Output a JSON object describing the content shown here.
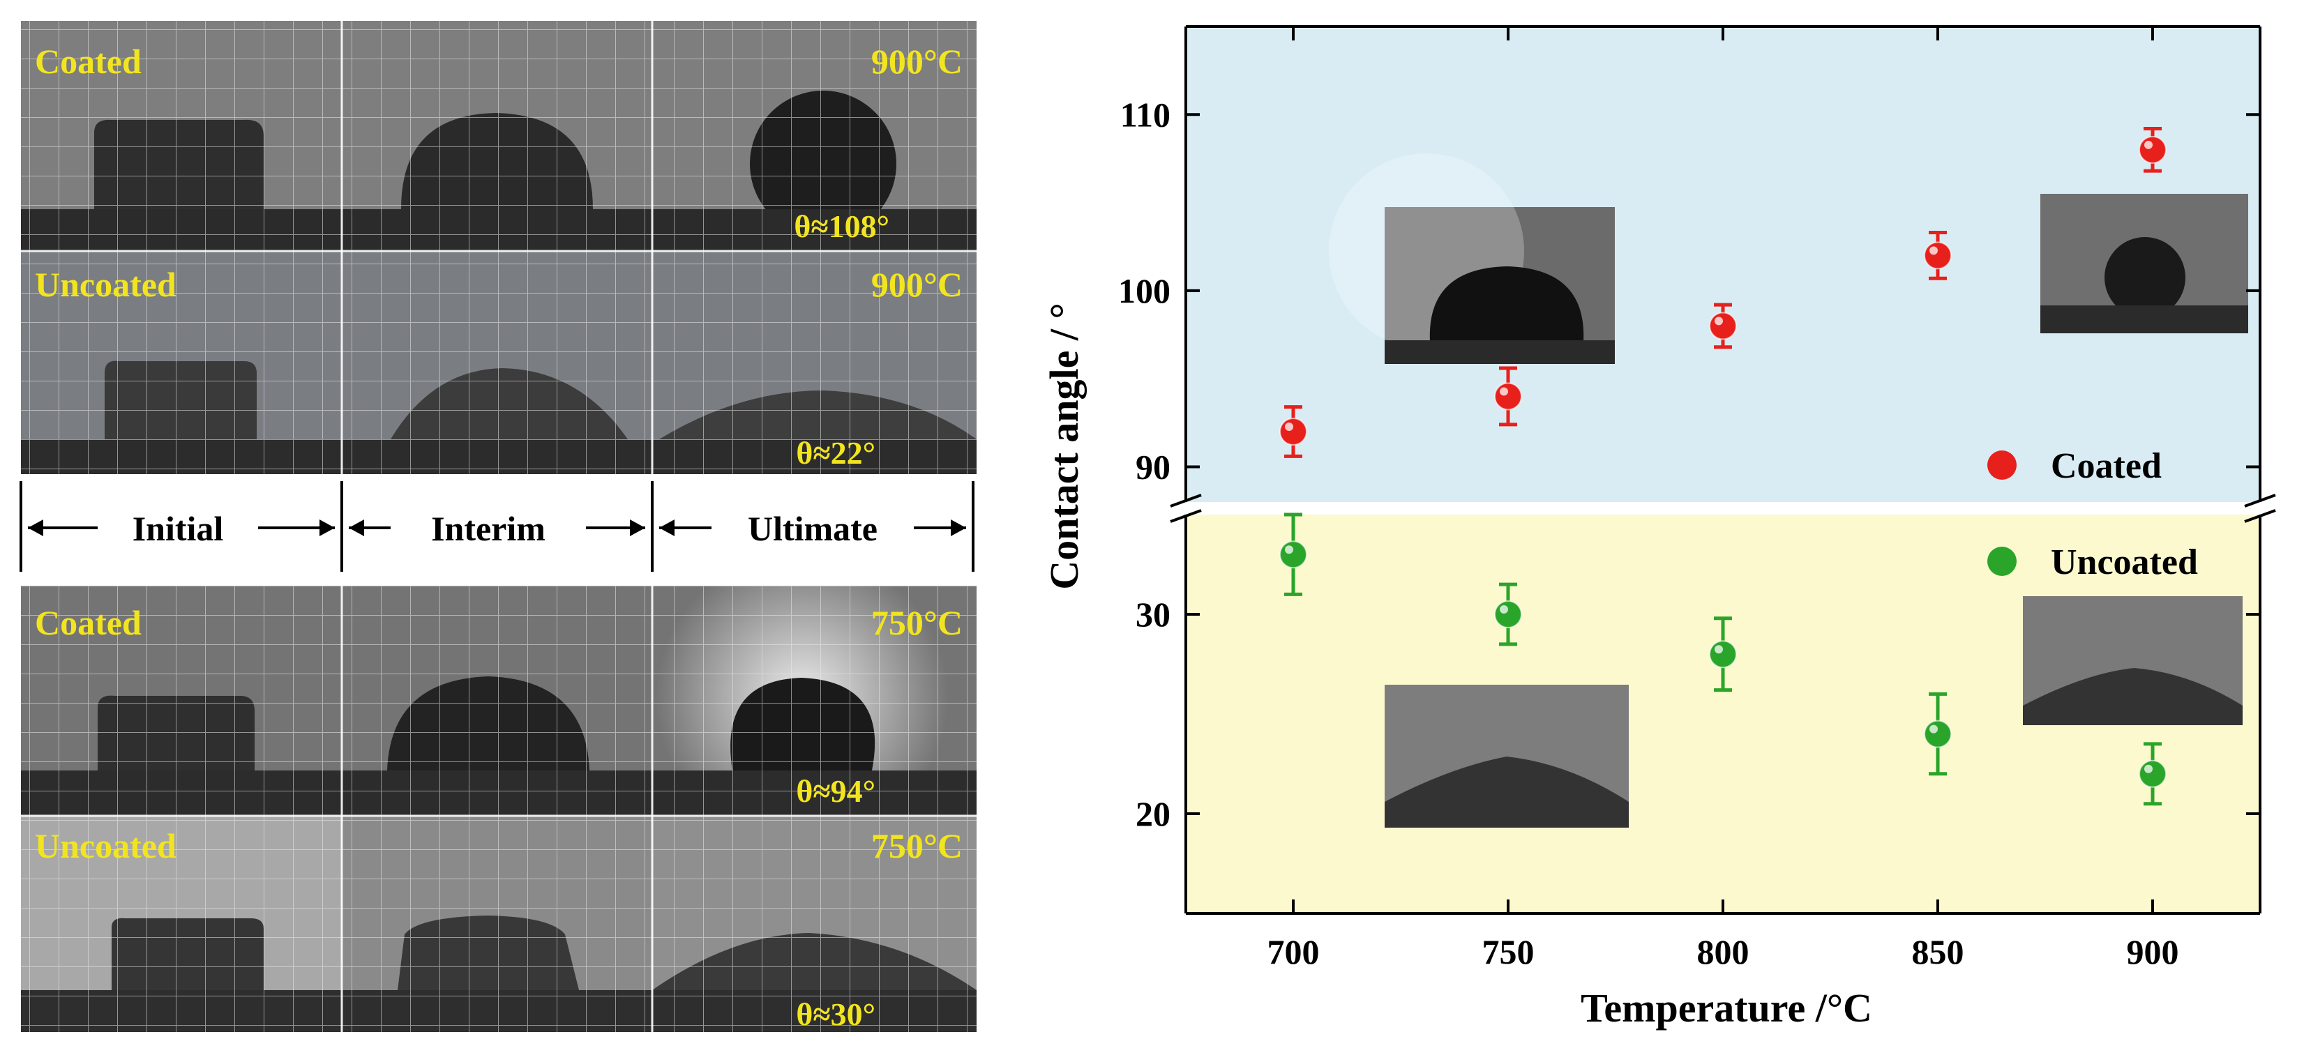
{
  "panels": {
    "stage_labels": [
      "Initial",
      "Interim",
      "Ultimate"
    ],
    "rows": [
      {
        "label": "Coated",
        "temperature": "900°C",
        "angle": "θ≈108°"
      },
      {
        "label": "Uncoated",
        "temperature": "900°C",
        "angle": "θ≈22°"
      },
      {
        "label": "Coated",
        "temperature": "750°C",
        "angle": "θ≈94°"
      },
      {
        "label": "Uncoated",
        "temperature": "750°C",
        "angle": "θ≈30°"
      }
    ],
    "label_color": "#f2e520"
  },
  "chart_data": {
    "type": "scatter",
    "xlabel": "Temperature /°C",
    "ylabel": "Contact angle / °",
    "x_ticks": [
      700,
      750,
      800,
      850,
      900
    ],
    "xlim": [
      675,
      925
    ],
    "y_axis_break": true,
    "upper_ylim": [
      88,
      115
    ],
    "upper_ticks": [
      90,
      100,
      110
    ],
    "lower_ylim": [
      15,
      35
    ],
    "lower_ticks": [
      20,
      30
    ],
    "legend_position": "right",
    "series": [
      {
        "name": "Coated",
        "color": "#e8201c",
        "x": [
          700,
          750,
          800,
          850,
          900
        ],
        "y": [
          92,
          94,
          98,
          102,
          108
        ],
        "error": [
          1.4,
          1.6,
          1.2,
          1.3,
          1.2
        ]
      },
      {
        "name": "Uncoated",
        "color": "#2aa52a",
        "x": [
          700,
          750,
          800,
          850,
          900
        ],
        "y": [
          33,
          30,
          28,
          24,
          22
        ],
        "error": [
          2.0,
          1.5,
          1.8,
          2.0,
          1.5
        ]
      }
    ],
    "background_colors": {
      "upper": "#d9ecf4",
      "lower": "#fcf9cf"
    }
  }
}
